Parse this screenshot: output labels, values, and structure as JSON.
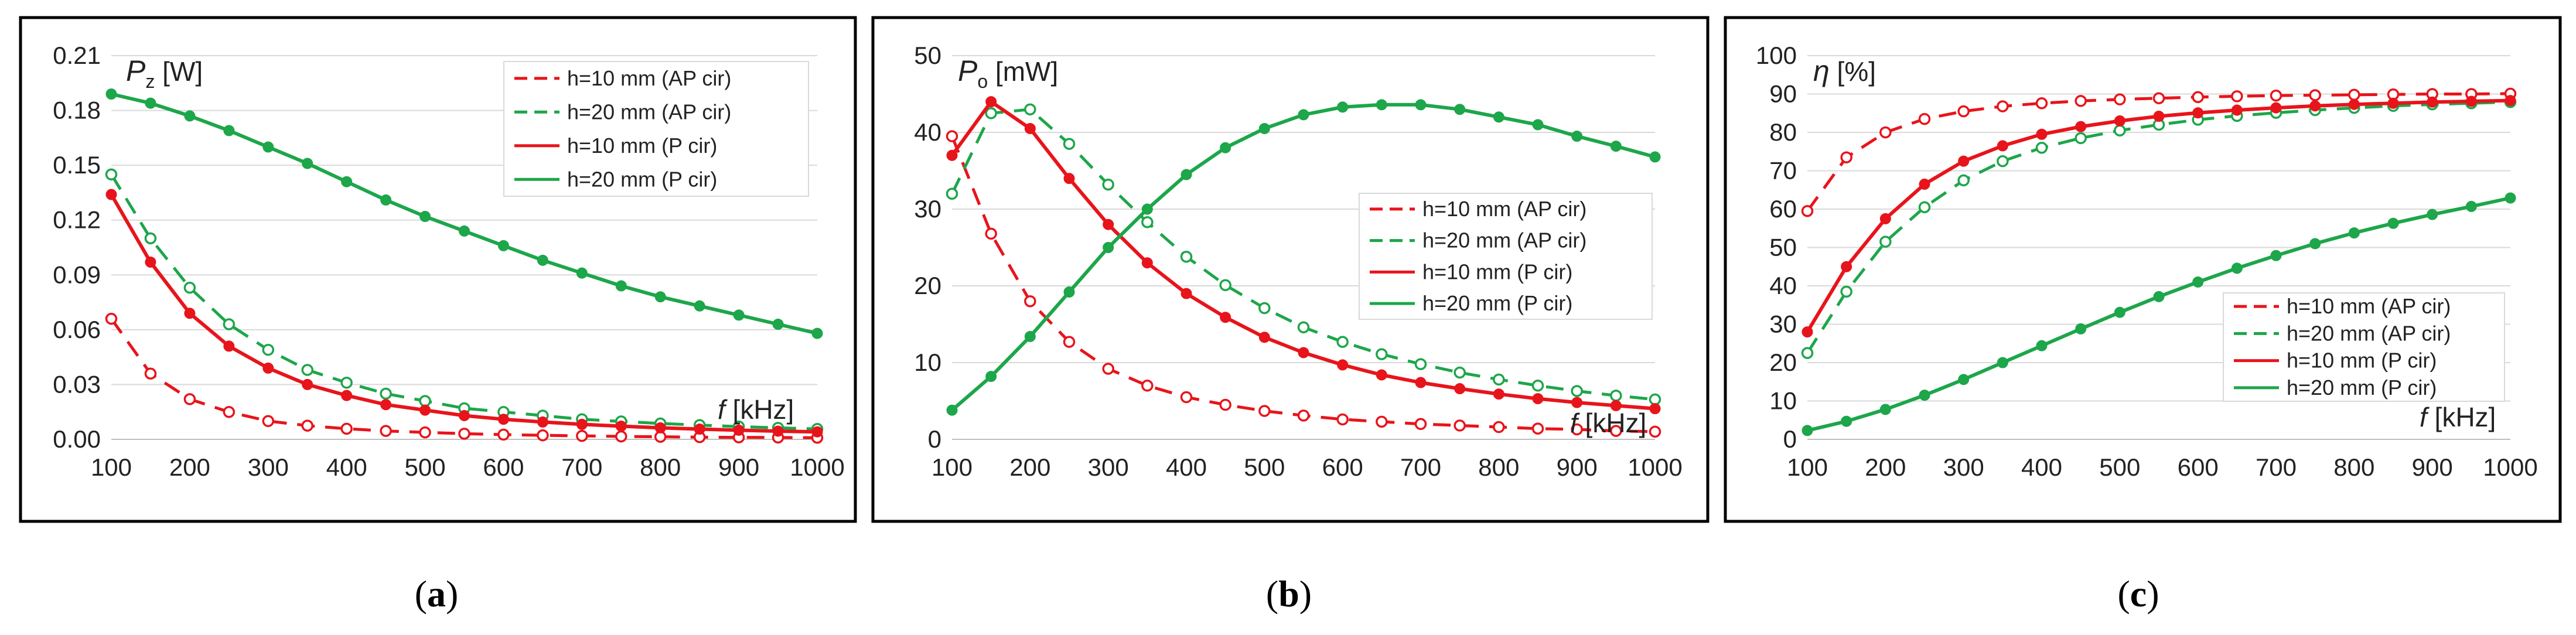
{
  "chart_data": [
    {
      "type": "line",
      "panel_label": "(a)",
      "ylabel_sym": "P",
      "ylabel_sub": "z",
      "ylabel_unit": " [W]",
      "xlabel_sym": "f",
      "xlabel_unit": " [kHz]",
      "xlim": [
        100,
        1000
      ],
      "ylim": [
        0,
        0.21
      ],
      "xticks": [
        100,
        200,
        300,
        400,
        500,
        600,
        700,
        800,
        900,
        1000
      ],
      "yticks": [
        0,
        0.03,
        0.06,
        0.09,
        0.12,
        0.15,
        0.18,
        0.21
      ],
      "ytick_labels": [
        "0.00",
        "0.03",
        "0.06",
        "0.09",
        "0.12",
        "0.15",
        "0.18",
        "0.21"
      ],
      "x": [
        100,
        150,
        200,
        250,
        300,
        350,
        400,
        450,
        500,
        550,
        600,
        650,
        700,
        750,
        800,
        850,
        900,
        950,
        1000
      ],
      "series": [
        {
          "name": "h=10 mm (AP cir)",
          "color": "#e8141b",
          "dash": true,
          "marker": "open",
          "values": [
            0.066,
            0.036,
            0.022,
            0.015,
            0.01,
            0.0075,
            0.0058,
            0.0046,
            0.0038,
            0.0031,
            0.0026,
            0.0022,
            0.0019,
            0.0016,
            0.0014,
            0.0012,
            0.0011,
            0.001,
            0.0009
          ]
        },
        {
          "name": "h=20 mm (AP cir)",
          "color": "#1da64a",
          "dash": true,
          "marker": "open",
          "values": [
            0.145,
            0.11,
            0.083,
            0.063,
            0.049,
            0.038,
            0.031,
            0.025,
            0.021,
            0.017,
            0.015,
            0.013,
            0.011,
            0.0098,
            0.0087,
            0.0078,
            0.007,
            0.0063,
            0.0057
          ]
        },
        {
          "name": "h=10 mm (P cir)",
          "color": "#e8141b",
          "dash": false,
          "marker": "filled",
          "values": [
            0.134,
            0.097,
            0.069,
            0.051,
            0.039,
            0.03,
            0.024,
            0.019,
            0.016,
            0.013,
            0.011,
            0.0095,
            0.0082,
            0.0072,
            0.0063,
            0.0056,
            0.005,
            0.0045,
            0.0041
          ]
        },
        {
          "name": "h=20 mm (P cir)",
          "color": "#1da64a",
          "dash": false,
          "marker": "filled",
          "values": [
            0.189,
            0.184,
            0.177,
            0.169,
            0.16,
            0.151,
            0.141,
            0.131,
            0.122,
            0.114,
            0.106,
            0.098,
            0.091,
            0.084,
            0.078,
            0.073,
            0.068,
            0.063,
            0.058
          ]
        }
      ],
      "legend_position": "top-right"
    },
    {
      "type": "line",
      "panel_label": "(b)",
      "ylabel_sym": "P",
      "ylabel_sub": "o",
      "ylabel_unit": " [mW]",
      "xlabel_sym": "f",
      "xlabel_unit": " [kHz]",
      "xlim": [
        100,
        1000
      ],
      "ylim": [
        0,
        50
      ],
      "xticks": [
        100,
        200,
        300,
        400,
        500,
        600,
        700,
        800,
        900,
        1000
      ],
      "yticks": [
        0,
        10,
        20,
        30,
        40,
        50
      ],
      "ytick_labels": [
        "0",
        "10",
        "20",
        "30",
        "40",
        "50"
      ],
      "x": [
        100,
        150,
        200,
        250,
        300,
        350,
        400,
        450,
        500,
        550,
        600,
        650,
        700,
        750,
        800,
        850,
        900,
        950,
        1000
      ],
      "series": [
        {
          "name": "h=10 mm (AP cir)",
          "color": "#e8141b",
          "dash": true,
          "marker": "open",
          "values": [
            39.5,
            26.8,
            18.0,
            12.7,
            9.2,
            7.0,
            5.5,
            4.5,
            3.7,
            3.1,
            2.6,
            2.3,
            2.0,
            1.8,
            1.6,
            1.4,
            1.3,
            1.1,
            1.0
          ]
        },
        {
          "name": "h=20 mm (AP cir)",
          "color": "#1da64a",
          "dash": true,
          "marker": "open",
          "values": [
            32.0,
            42.5,
            43.0,
            38.5,
            33.2,
            28.3,
            23.8,
            20.1,
            17.1,
            14.6,
            12.7,
            11.1,
            9.8,
            8.7,
            7.8,
            7.0,
            6.3,
            5.7,
            5.2
          ]
        },
        {
          "name": "h=10 mm (P cir)",
          "color": "#e8141b",
          "dash": false,
          "marker": "filled",
          "values": [
            37.0,
            44.0,
            40.5,
            34.0,
            28.0,
            23.0,
            19.0,
            15.9,
            13.3,
            11.3,
            9.7,
            8.4,
            7.4,
            6.6,
            5.9,
            5.3,
            4.8,
            4.4,
            4.0
          ]
        },
        {
          "name": "h=20 mm (P cir)",
          "color": "#1da64a",
          "dash": false,
          "marker": "filled",
          "values": [
            3.8,
            8.2,
            13.4,
            19.2,
            25.0,
            30.0,
            34.5,
            38.0,
            40.5,
            42.3,
            43.3,
            43.6,
            43.6,
            43.0,
            42.0,
            41.0,
            39.5,
            38.2,
            36.8
          ]
        }
      ],
      "legend_position": "middle-right"
    },
    {
      "type": "line",
      "panel_label": "(c)",
      "ylabel_sym": "η",
      "ylabel_sub": "",
      "ylabel_unit": " [%]",
      "xlabel_sym": "f",
      "xlabel_unit": " [kHz]",
      "xlim": [
        100,
        1000
      ],
      "ylim": [
        0,
        100
      ],
      "xticks": [
        100,
        200,
        300,
        400,
        500,
        600,
        700,
        800,
        900,
        1000
      ],
      "yticks": [
        0,
        10,
        20,
        30,
        40,
        50,
        60,
        70,
        80,
        90,
        100
      ],
      "ytick_labels": [
        "0",
        "10",
        "20",
        "30",
        "40",
        "50",
        "60",
        "70",
        "80",
        "90",
        "100"
      ],
      "x": [
        100,
        150,
        200,
        250,
        300,
        350,
        400,
        450,
        500,
        550,
        600,
        650,
        700,
        750,
        800,
        850,
        900,
        950,
        1000
      ],
      "series": [
        {
          "name": "h=10 mm (AP cir)",
          "color": "#e8141b",
          "dash": true,
          "marker": "open",
          "values": [
            59.5,
            73.5,
            80.0,
            83.5,
            85.5,
            86.8,
            87.6,
            88.2,
            88.6,
            88.9,
            89.2,
            89.4,
            89.6,
            89.7,
            89.8,
            89.9,
            90.0,
            90.0,
            90.1
          ]
        },
        {
          "name": "h=20 mm (AP cir)",
          "color": "#1da64a",
          "dash": true,
          "marker": "open",
          "values": [
            22.5,
            38.5,
            51.5,
            60.5,
            67.5,
            72.5,
            76.0,
            78.5,
            80.5,
            82.0,
            83.3,
            84.3,
            85.1,
            85.8,
            86.4,
            86.9,
            87.3,
            87.6,
            87.9
          ]
        },
        {
          "name": "h=10 mm (P cir)",
          "color": "#e8141b",
          "dash": false,
          "marker": "filled",
          "values": [
            28.0,
            45.0,
            57.5,
            66.5,
            72.5,
            76.5,
            79.5,
            81.5,
            83.0,
            84.2,
            85.1,
            85.8,
            86.4,
            86.9,
            87.3,
            87.6,
            87.9,
            88.1,
            88.3
          ]
        },
        {
          "name": "h=20 mm (P cir)",
          "color": "#1da64a",
          "dash": false,
          "marker": "filled",
          "values": [
            2.3,
            4.7,
            7.8,
            11.5,
            15.6,
            20.0,
            24.4,
            28.8,
            33.1,
            37.2,
            41.0,
            44.6,
            47.9,
            51.0,
            53.8,
            56.3,
            58.6,
            60.7,
            62.9
          ]
        }
      ],
      "legend_position": "bottom-right"
    }
  ]
}
